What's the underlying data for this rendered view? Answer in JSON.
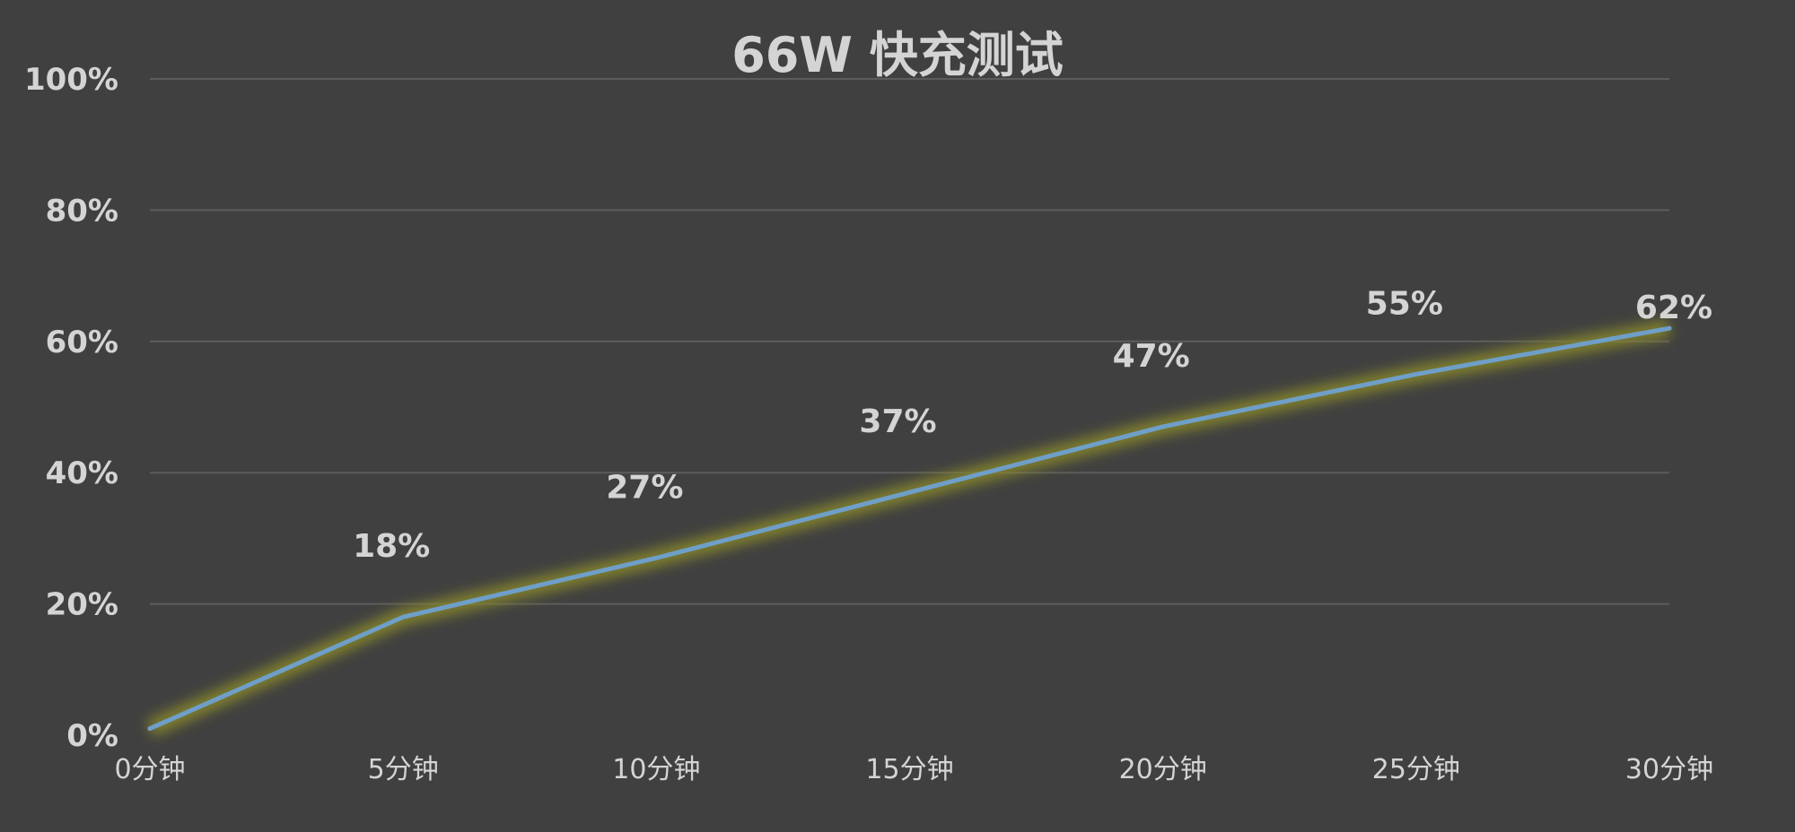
{
  "chart_data": {
    "type": "line",
    "title": "66W 快充测试",
    "xlabel": "",
    "ylabel": "",
    "categories": [
      "0分钟",
      "5分钟",
      "10分钟",
      "15分钟",
      "20分钟",
      "25分钟",
      "30分钟"
    ],
    "series": [
      {
        "values": [
          1,
          18,
          27,
          37,
          47,
          55,
          62
        ],
        "labels": [
          "",
          "18%",
          "27%",
          "37%",
          "47%",
          "55%",
          "62%"
        ],
        "color": "#6f9fc8",
        "glow_color": "#8a8a2a"
      }
    ],
    "ylim": [
      0,
      100
    ],
    "yticks": [
      0,
      20,
      40,
      60,
      80,
      100
    ],
    "ytick_labels": [
      "0%",
      "20%",
      "40%",
      "60%",
      "80%",
      "100%"
    ],
    "grid": true,
    "legend": "none"
  }
}
